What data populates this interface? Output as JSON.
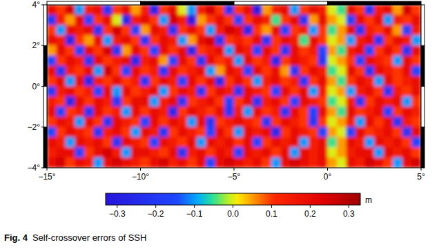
{
  "chart_data": {
    "type": "heatmap",
    "figure_label": "Fig. 4",
    "title": "Self-crossover errors of SSH",
    "xlim": [
      -15,
      5
    ],
    "ylim": [
      -4,
      4
    ],
    "xticks": [
      {
        "value": -15,
        "label": "−15°"
      },
      {
        "value": -10,
        "label": "−10°"
      },
      {
        "value": -5,
        "label": "−5°"
      },
      {
        "value": 0,
        "label": "0°"
      },
      {
        "value": 5,
        "label": "5°"
      }
    ],
    "yticks": [
      {
        "value": -4,
        "label": "−4°"
      },
      {
        "value": -2,
        "label": "−2°"
      },
      {
        "value": 0,
        "label": "0°"
      },
      {
        "value": 2,
        "label": "2°"
      },
      {
        "value": 4,
        "label": "4°"
      }
    ],
    "colorbar_range": [
      -0.33,
      0.33
    ],
    "colorbar_ticks": [
      {
        "value": -0.3,
        "label": "−0.3"
      },
      {
        "value": -0.2,
        "label": "−0.2"
      },
      {
        "value": -0.1,
        "label": "−0.1"
      },
      {
        "value": 0,
        "label": "0.0"
      },
      {
        "value": 0.1,
        "label": "0.1"
      },
      {
        "value": 0.2,
        "label": "0.2"
      },
      {
        "value": 0.3,
        "label": "0.3"
      }
    ],
    "colorbar_label": "m",
    "x": [
      -14.75,
      -14.25,
      -13.75,
      -13.25,
      -12.75,
      -12.25,
      -11.75,
      -11.25,
      -10.75,
      -10.25,
      -9.75,
      -9.25,
      -8.75,
      -8.25,
      -7.75,
      -7.25,
      -6.75,
      -6.25,
      -5.75,
      -5.25,
      -4.75,
      -4.25,
      -3.75,
      -3.25,
      -2.75,
      -2.25,
      -1.75,
      -1.25,
      -0.75,
      -0.25,
      0.25,
      0.75,
      1.25,
      1.75,
      2.25,
      2.75,
      3.25,
      3.75,
      4.25,
      4.75
    ],
    "y": [
      3.75,
      3.25,
      2.75,
      2.25,
      1.75,
      1.25,
      0.75,
      0.25,
      -0.25,
      -0.75,
      -1.25,
      -1.75,
      -2.25,
      -2.75,
      -3.25,
      -3.75
    ],
    "cells": [
      [
        0.2,
        0.1,
        0.25,
        -0.1,
        0.15,
        0.2,
        -0.2,
        0.1,
        0.2,
        0.05,
        0.15,
        -0.25,
        0.1,
        0.2,
        0,
        -0.1,
        0.15,
        0.25,
        0.1,
        -0.2,
        0.1,
        0.2,
        -0.3,
        0.05,
        0.15,
        0.2,
        -0.1,
        0.1,
        0.2,
        0.15,
        0,
        -0.05,
        0.2,
        0.1,
        -0.2,
        0.15,
        0.2,
        0.05,
        0.25,
        0.1
      ],
      [
        -0.2,
        0.15,
        0.05,
        0.2,
        -0.15,
        0.1,
        0.2,
        0,
        -0.25,
        0.15,
        0.2,
        0.1,
        -0.1,
        0.25,
        0.15,
        -0.3,
        0.05,
        0.1,
        0.2,
        0.1,
        -0.15,
        0.1,
        0.2,
        0.15,
        -0.05,
        0.1,
        0.2,
        -0.2,
        0.05,
        0.2,
        0.05,
        0,
        -0.15,
        0.2,
        0.1,
        0.2,
        -0.1,
        0.15,
        0.1,
        0.2
      ],
      [
        0.1,
        -0.1,
        0.2,
        0.15,
        0.2,
        -0.2,
        0.1,
        0.25,
        0.1,
        -0.15,
        0.05,
        0.2,
        0.15,
        -0.2,
        0.1,
        0.2,
        0.1,
        -0.1,
        0.15,
        0.25,
        0.2,
        -0.25,
        0.1,
        0.05,
        0.2,
        -0.15,
        0.1,
        0.15,
        -0.1,
        0.1,
        -0.05,
        0.05,
        0.2,
        -0.2,
        0.15,
        0.1,
        0.2,
        0.05,
        -0.15,
        0.15
      ],
      [
        0.2,
        0.15,
        -0.25,
        0.1,
        0.05,
        0.2,
        -0.1,
        0.15,
        0.2,
        0.1,
        -0.2,
        0.1,
        0.2,
        0.15,
        -0.1,
        0.05,
        0.2,
        0.25,
        -0.2,
        0.1,
        0.15,
        0.1,
        0.2,
        -0.2,
        0.1,
        0.2,
        0.15,
        -0.05,
        0.2,
        0.1,
        0,
        0.05,
        -0.1,
        0.15,
        0.2,
        -0.2,
        0.1,
        0.2,
        0.15,
        -0.1
      ],
      [
        0.05,
        0.2,
        0.1,
        -0.15,
        0.2,
        0.1,
        0.25,
        -0.2,
        0.05,
        0.2,
        0.1,
        -0.15,
        0.2,
        0.1,
        0.2,
        -0.25,
        0.1,
        0.15,
        0.2,
        -0.1,
        0.2,
        0.15,
        -0.15,
        0.2,
        0.1,
        -0.2,
        0.2,
        0.1,
        0.15,
        -0.15,
        0.05,
        -0.05,
        0.15,
        0.2,
        -0.15,
        0.1,
        0.2,
        0.1,
        -0.2,
        0.2
      ],
      [
        -0.15,
        0.1,
        0.2,
        0.15,
        -0.2,
        0.2,
        0.1,
        0.15,
        0.2,
        -0.25,
        0.15,
        0.2,
        0.05,
        -0.15,
        0.2,
        0.1,
        -0.2,
        0.2,
        0.1,
        0.15,
        -0.1,
        0.2,
        0.1,
        0.15,
        -0.25,
        0.1,
        0.2,
        0.15,
        0.1,
        -0.2,
        0,
        0.05,
        0.1,
        -0.15,
        0.2,
        0.15,
        0.1,
        -0.1,
        0.2,
        0.1
      ],
      [
        0.2,
        -0.2,
        0.15,
        0.1,
        0.2,
        -0.1,
        0.25,
        0.1,
        -0.15,
        0.2,
        0.1,
        0.15,
        -0.2,
        0.2,
        0.1,
        0.15,
        0.2,
        -0.1,
        0.05,
        0.2,
        0.15,
        -0.15,
        0.2,
        0.1,
        0.2,
        0.05,
        -0.2,
        0.1,
        0.2,
        0.15,
        -0.05,
        0,
        0.2,
        0.1,
        -0.2,
        0.2,
        0.15,
        0.1,
        0.2,
        -0.15
      ],
      [
        0.1,
        0.2,
        -0.1,
        0.2,
        -0.25,
        0.15,
        0.1,
        0.2,
        0.1,
        0.15,
        -0.2,
        0.1,
        0.2,
        0.15,
        -0.15,
        0.2,
        0.1,
        0.2,
        -0.25,
        0.1,
        0.2,
        0.1,
        -0.1,
        0.15,
        0.2,
        0.1,
        0.15,
        -0.2,
        0.1,
        0.2,
        0.05,
        -0.05,
        0.1,
        0.2,
        0.15,
        -0.1,
        0.2,
        0.1,
        0.15,
        0.2
      ],
      [
        -0.2,
        0.15,
        0.2,
        0.1,
        0.15,
        -0.15,
        0.2,
        -0.1,
        0.2,
        0.1,
        0.15,
        0.2,
        -0.1,
        0.1,
        0.2,
        0.15,
        -0.2,
        0.1,
        0.2,
        0.15,
        -0.2,
        0.2,
        0.15,
        0.1,
        -0.15,
        0.2,
        0.1,
        0.2,
        -0.1,
        0.15,
        0,
        0.05,
        -0.1,
        0.15,
        0.2,
        0.1,
        -0.2,
        0.15,
        0.1,
        0.2
      ],
      [
        0.15,
        0.1,
        -0.25,
        0.2,
        0.1,
        0.2,
        0.15,
        -0.2,
        0.1,
        0.2,
        0.2,
        -0.1,
        0.15,
        0.2,
        -0.2,
        0.1,
        0.15,
        0.2,
        0.1,
        -0.15,
        0.1,
        0.2,
        -0.2,
        0.15,
        0.2,
        0.1,
        -0.15,
        0.2,
        0.15,
        0.1,
        -0.05,
        0,
        0.15,
        -0.2,
        0.1,
        0.2,
        0.15,
        0.2,
        -0.1,
        0.1
      ],
      [
        0.2,
        -0.15,
        0.1,
        0.15,
        -0.2,
        0.2,
        0.1,
        0.15,
        -0.1,
        0.2,
        0.1,
        0.2,
        0.15,
        -0.25,
        0.1,
        0.2,
        0.15,
        0.1,
        0.2,
        -0.2,
        0.15,
        -0.1,
        0.2,
        0.1,
        0.15,
        -0.2,
        0.2,
        0.1,
        -0.15,
        0.2,
        0.05,
        -0.05,
        0.2,
        0.1,
        0.15,
        0.2,
        -0.15,
        0.1,
        0.2,
        0.15
      ],
      [
        0.1,
        0.2,
        0.15,
        -0.1,
        0.2,
        0.1,
        -0.2,
        0.2,
        0.15,
        0.1,
        -0.15,
        0.2,
        0.1,
        0.2,
        0.15,
        -0.1,
        0.2,
        -0.2,
        0.1,
        0.15,
        0.2,
        0.15,
        0.1,
        -0.2,
        0.1,
        0.2,
        0.15,
        0.1,
        -0.2,
        0.1,
        0,
        0.05,
        0.15,
        -0.1,
        0.2,
        0.1,
        0.2,
        -0.2,
        0.15,
        0.1
      ],
      [
        -0.15,
        0.1,
        0.2,
        0.15,
        0.1,
        -0.2,
        0.15,
        0.2,
        0.1,
        -0.1,
        0.2,
        0.15,
        -0.2,
        0.1,
        0.2,
        0.15,
        0.1,
        -0.15,
        0.2,
        0.1,
        -0.1,
        0.2,
        0.15,
        0.2,
        -0.25,
        0.1,
        0.2,
        0.15,
        0.1,
        -0.15,
        0.05,
        0,
        -0.15,
        0.2,
        0.1,
        0.15,
        0.2,
        0.1,
        -0.2,
        0.2
      ],
      [
        0.2,
        0.15,
        -0.1,
        0.2,
        0.15,
        0.2,
        0.1,
        -0.2,
        0.2,
        0.15,
        0.1,
        -0.15,
        0.2,
        0.15,
        0.1,
        0.2,
        -0.1,
        0.2,
        0.15,
        0.2,
        0.1,
        0.2,
        -0.15,
        0.1,
        0.2,
        0.15,
        0.2,
        -0.1,
        0.15,
        0.2,
        -0.05,
        0.05,
        0.2,
        0.15,
        -0.1,
        0.2,
        0.15,
        0.2,
        0.1,
        -0.15
      ],
      [
        0.15,
        0.2,
        0.2,
        -0.15,
        0.1,
        0.2,
        0.25,
        0.15,
        -0.1,
        0.2,
        0.2,
        0.15,
        0.1,
        0.2,
        -0.2,
        0.15,
        0.2,
        0.1,
        0.2,
        0.15,
        -0.15,
        0.2,
        0.15,
        0.2,
        0.1,
        0.2,
        -0.1,
        0.2,
        0.15,
        0.2,
        0,
        0.05,
        0.15,
        0.2,
        0.2,
        -0.1,
        0.2,
        0.15,
        0.2,
        0.1
      ],
      [
        0.2,
        0.25,
        0.1,
        0.2,
        0.15,
        -0.1,
        0.2,
        0.25,
        0.2,
        0.15,
        0.1,
        0.2,
        0.25,
        0.15,
        0.2,
        0.1,
        0.2,
        -0.15,
        0.2,
        0.25,
        0.2,
        0.15,
        0.2,
        0.1,
        -0.1,
        0.2,
        0.25,
        0.2,
        0.15,
        0.2,
        0.05,
        0,
        0.2,
        0.15,
        0.25,
        0.2,
        0.1,
        -0.1,
        0.2,
        0.25
      ]
    ]
  }
}
